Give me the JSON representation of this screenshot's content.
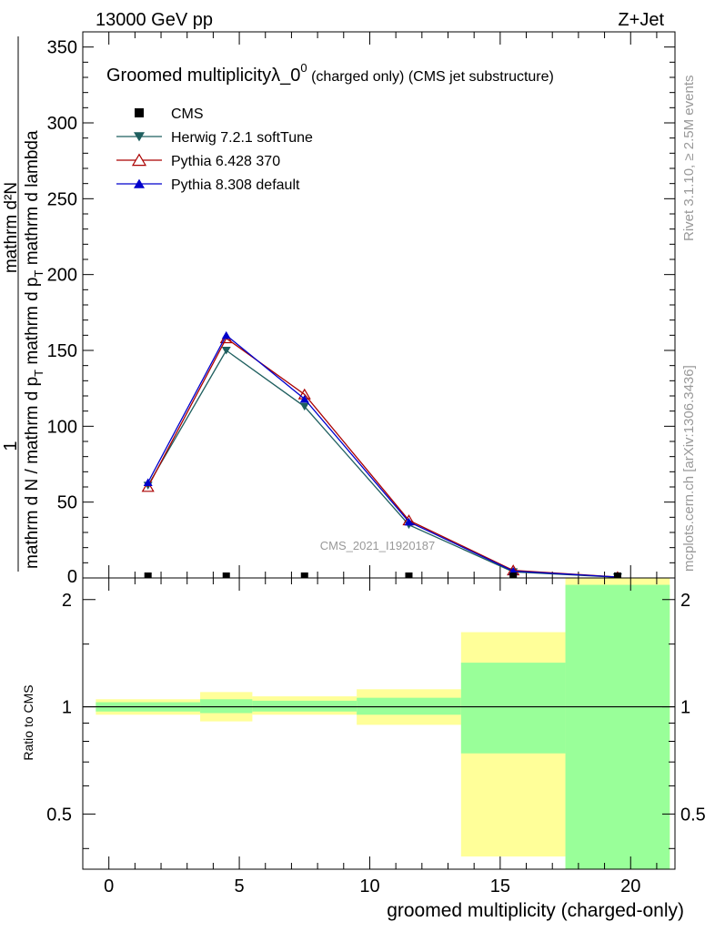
{
  "header": {
    "left": "13000 GeV pp",
    "right": "Z+Jet"
  },
  "side_labels": {
    "rivet": "Rivet 3.1.10, ≥ 2.5M events",
    "mcplots": "mcplots.cern.ch [arXiv:1306.3436]"
  },
  "watermark": "CMS_2021_I1920187",
  "chart_data": [
    {
      "type": "line",
      "title": "Groomed multiplicityλ_0",
      "title_sup": "0",
      "title_suffix": " (charged only) (CMS jet substructure)",
      "xlabel": "",
      "ylabel_main": "mathrm d N / mathrm d p",
      "ylabel_top": "1",
      "ylabel_num": "mathrm d²N",
      "ylabel_den": "mathrm d p",
      "ylabel_den_sub": "T",
      "ylabel_den_rest": " mathrm d lambda",
      "ylabel_main_sub": "T",
      "ylabel_main_rest": " mathrm d p",
      "ylabel_main_sub2": "T",
      "ylabel_main_rest2": " mathrm d lambda",
      "xlim": [
        -1,
        21.7
      ],
      "ylim": [
        0,
        360
      ],
      "yticks": [
        50,
        100,
        150,
        200,
        250,
        300,
        350
      ],
      "legend_position": "top-left",
      "legend": [
        {
          "name": "CMS",
          "color": "#000000",
          "marker": "square"
        },
        {
          "name": "Herwig 7.2.1 softTune",
          "color": "#1f5f5f",
          "marker": "triangle-down"
        },
        {
          "name": "Pythia 6.428 370",
          "color": "#aa0000",
          "marker": "triangle-open"
        },
        {
          "name": "Pythia 8.308 default",
          "color": "#0000cc",
          "marker": "triangle-up"
        }
      ],
      "x": [
        1.5,
        4.5,
        7.5,
        11.5,
        15.5,
        19.5
      ],
      "series": [
        {
          "name": "CMS",
          "values": [
            0,
            0,
            0,
            0,
            0,
            0
          ]
        },
        {
          "name": "Herwig 7.2.1 softTune",
          "values": [
            61,
            150,
            113,
            35,
            4,
            0.5
          ]
        },
        {
          "name": "Pythia 6.428 370",
          "values": [
            60,
            158,
            121,
            38,
            5,
            0.6
          ]
        },
        {
          "name": "Pythia 8.308 default",
          "values": [
            63,
            160,
            118,
            37,
            4.5,
            0.6
          ]
        }
      ]
    },
    {
      "type": "area",
      "ylabel": "Ratio to CMS",
      "xlabel": "groomed multiplicity (charged-only)",
      "xlim": [
        -1,
        21.7
      ],
      "ylim": [
        0.35,
        2.3
      ],
      "yticks": [
        0.5,
        1,
        2
      ],
      "yticklabels": [
        "0.5",
        "1",
        "2"
      ],
      "xticks": [
        0,
        5,
        10,
        15,
        20
      ],
      "xticklabels": [
        "0",
        "5",
        "10",
        "15",
        "20"
      ],
      "bins": [
        {
          "x": [
            -0.5,
            3.5
          ],
          "yellow": [
            0.95,
            1.05
          ],
          "green": [
            0.97,
            1.03
          ]
        },
        {
          "x": [
            3.5,
            5.5
          ],
          "yellow": [
            0.91,
            1.1
          ],
          "green": [
            0.96,
            1.05
          ]
        },
        {
          "x": [
            5.5,
            9.5
          ],
          "yellow": [
            0.95,
            1.07
          ],
          "green": [
            0.97,
            1.04
          ]
        },
        {
          "x": [
            9.5,
            13.5
          ],
          "yellow": [
            0.89,
            1.12
          ],
          "green": [
            0.95,
            1.06
          ]
        },
        {
          "x": [
            13.5,
            17.5
          ],
          "yellow": [
            0.38,
            1.62
          ],
          "green": [
            0.74,
            1.33
          ]
        },
        {
          "x": [
            17.5,
            21.5
          ],
          "yellow": [
            0.35,
            2.3
          ],
          "green": [
            0.35,
            2.2
          ]
        }
      ],
      "colors": {
        "yellow": "#ffff99",
        "green": "#99ff99"
      }
    }
  ]
}
